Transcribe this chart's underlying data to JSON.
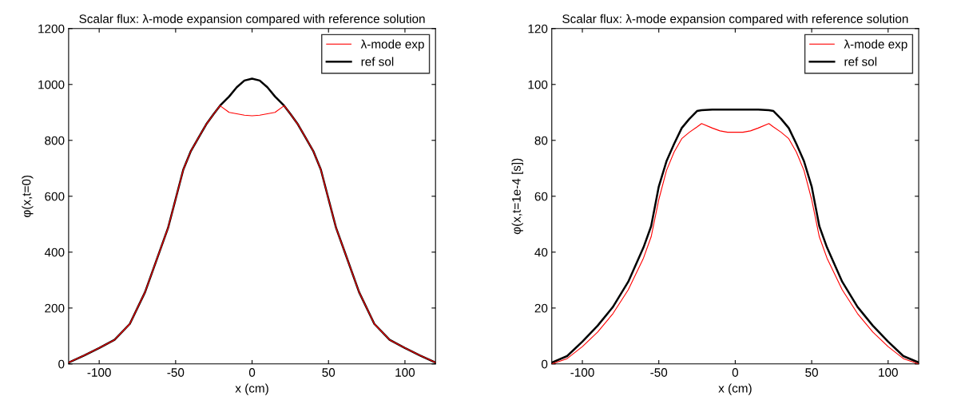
{
  "chart_data": [
    {
      "type": "line",
      "title": "Scalar flux: λ-mode expansion compared with reference solution",
      "xlabel": "x (cm)",
      "ylabel": "φ(x,t=0)",
      "x": [
        -120,
        -110,
        -100,
        -90,
        -80,
        -70,
        -60,
        -55,
        -50,
        -45,
        -40,
        -35,
        -30,
        -25,
        -21,
        -15,
        -10,
        -5,
        0,
        5,
        10,
        15,
        21,
        25,
        30,
        35,
        40,
        45,
        50,
        55,
        60,
        70,
        80,
        90,
        100,
        110,
        120
      ],
      "series": [
        {
          "name": "λ-mode exp",
          "color": "#ff0000",
          "values": [
            5,
            30,
            57,
            86,
            143,
            257,
            410,
            486,
            590,
            695,
            762,
            810,
            857,
            895,
            924,
            900,
            895,
            890,
            888,
            890,
            895,
            900,
            924,
            895,
            857,
            810,
            762,
            695,
            590,
            486,
            410,
            257,
            143,
            86,
            57,
            30,
            5
          ]
        },
        {
          "name": "ref sol",
          "color": "#000000",
          "values": [
            5,
            30,
            57,
            86,
            143,
            257,
            410,
            486,
            590,
            695,
            762,
            810,
            857,
            895,
            924,
            957,
            990,
            1014,
            1021,
            1014,
            990,
            957,
            924,
            895,
            857,
            810,
            762,
            695,
            590,
            486,
            410,
            257,
            143,
            86,
            57,
            30,
            5
          ]
        }
      ],
      "xlim": [
        -120,
        120
      ],
      "xticks": [
        -100,
        -50,
        0,
        50,
        100
      ],
      "ylim": [
        0,
        1200
      ],
      "yticks": [
        0,
        200,
        400,
        600,
        800,
        1000,
        1200
      ],
      "legend": "top right",
      "grid": false
    },
    {
      "type": "line",
      "title": "Scalar flux: λ-mode expansion compared with reference solution",
      "xlabel": "x (cm)",
      "ylabel": "φ(x,t=1e-4 [s])",
      "x": [
        -120,
        -110,
        -100,
        -90,
        -80,
        -70,
        -60,
        -55,
        -50,
        -45,
        -40,
        -35,
        -30,
        -25,
        -22,
        -15,
        -10,
        -5,
        0,
        5,
        10,
        15,
        22,
        25,
        30,
        35,
        40,
        45,
        50,
        55,
        60,
        70,
        80,
        90,
        100,
        110,
        120
      ],
      "series": [
        {
          "name": "λ-mode exp",
          "color": "#ff0000",
          "values": [
            0,
            1.9,
            6.2,
            11.4,
            18,
            26.5,
            37.9,
            45.5,
            58.8,
            69.2,
            75.8,
            80.6,
            82.9,
            84.8,
            86,
            84.4,
            83.4,
            82.9,
            82.9,
            82.9,
            83.4,
            84.4,
            86,
            84.8,
            82.9,
            80.6,
            75.8,
            69.2,
            58.8,
            45.5,
            37.9,
            26.5,
            18,
            11.4,
            6.2,
            1.9,
            0
          ]
        },
        {
          "name": "ref sol",
          "color": "#000000",
          "values": [
            0.5,
            2.8,
            8,
            13.7,
            20.4,
            29.4,
            41.7,
            49.3,
            63.5,
            72.5,
            78.7,
            84.4,
            87.7,
            90.5,
            90.8,
            91,
            91,
            91,
            91,
            91,
            91,
            91,
            90.8,
            90.5,
            87.7,
            84.4,
            78.7,
            72.5,
            63.5,
            49.3,
            41.7,
            29.4,
            20.4,
            13.7,
            8,
            2.8,
            0.5
          ]
        }
      ],
      "xlim": [
        -120,
        120
      ],
      "xticks": [
        -100,
        -50,
        0,
        50,
        100
      ],
      "ylim": [
        0,
        120
      ],
      "yticks": [
        0,
        20,
        40,
        60,
        80,
        100,
        120
      ],
      "legend": "top right",
      "grid": false
    }
  ]
}
